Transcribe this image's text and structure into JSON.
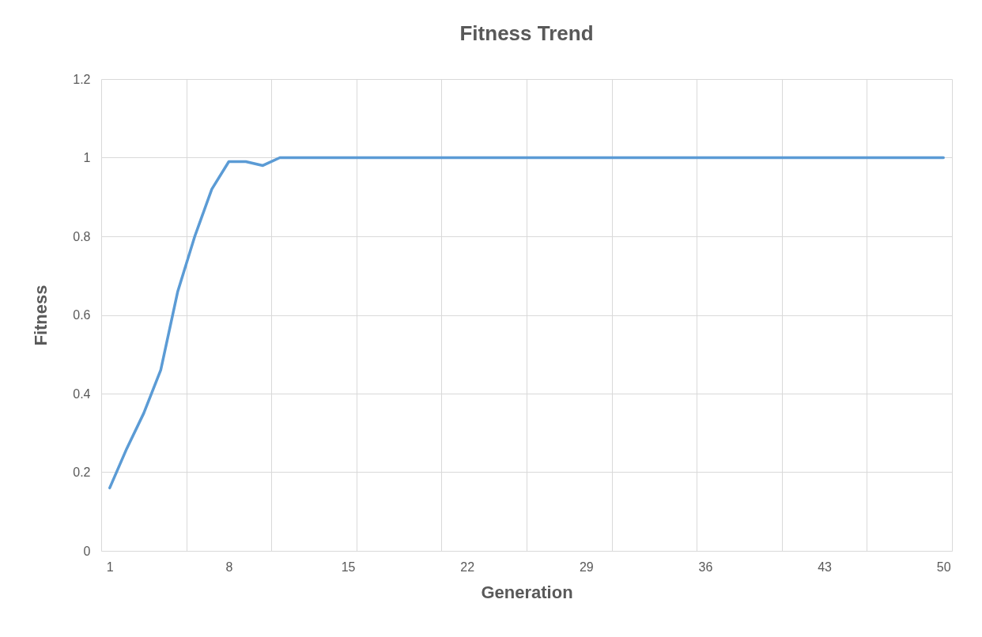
{
  "chart_data": {
    "type": "line",
    "title": "Fitness Trend",
    "xlabel": "Generation",
    "ylabel": "Fitness",
    "categories": [
      "1",
      null,
      null,
      null,
      null,
      null,
      null,
      "8",
      null,
      null,
      null,
      null,
      null,
      null,
      "15",
      null,
      null,
      null,
      null,
      null,
      null,
      "22",
      null,
      null,
      null,
      null,
      null,
      null,
      "29",
      null,
      null,
      null,
      null,
      null,
      null,
      "36",
      null,
      null,
      null,
      null,
      null,
      null,
      "43",
      null,
      null,
      null,
      null,
      null,
      null,
      "50"
    ],
    "series": [
      {
        "color": "#5b9bd5",
        "values": [
          0.16,
          0.26,
          0.35,
          0.46,
          0.66,
          0.8,
          0.92,
          0.99,
          0.99,
          0.98,
          1,
          1,
          1,
          1,
          1,
          1,
          1,
          1,
          1,
          1,
          1,
          1,
          1,
          1,
          1,
          1,
          1,
          1,
          1,
          1,
          1,
          1,
          1,
          1,
          1,
          1,
          1,
          1,
          1,
          1,
          1,
          1,
          1,
          1,
          1,
          1,
          1,
          1,
          1,
          1
        ]
      }
    ],
    "ylim": [
      0,
      1.2
    ],
    "yticks": [
      0,
      0.2,
      0.4,
      0.6,
      0.8,
      1,
      1.2
    ],
    "grid": true
  }
}
